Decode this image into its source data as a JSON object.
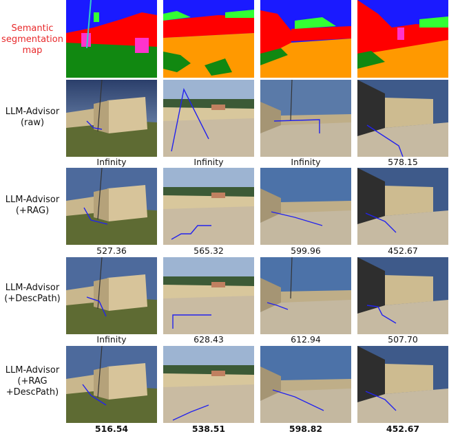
{
  "rows": [
    {
      "label": "Semantic\nsegmentation\nmap",
      "scores": [
        "",
        "",
        "",
        ""
      ],
      "bold": false
    },
    {
      "label": "LLM-Advisor\n(raw)",
      "scores": [
        "Infinity",
        "Infinity",
        "Infinity",
        "578.15"
      ],
      "bold": false
    },
    {
      "label": "LLM-Advisor\n(+RAG)",
      "scores": [
        "527.36",
        "565.32",
        "599.96",
        "452.67"
      ],
      "bold": false
    },
    {
      "label": "LLM-Advisor\n(+DescPath)",
      "scores": [
        "Infinity",
        "628.43",
        "612.94",
        "507.70"
      ],
      "bold": false
    },
    {
      "label": "LLM-Advisor\n(+RAG\n+DescPath)",
      "scores": [
        "516.54",
        "538.51",
        "598.82",
        "452.67"
      ],
      "bold": true
    }
  ],
  "colors": {
    "label_highlight": "#e8282a",
    "seg_sky": "#1a1aff",
    "seg_building": "#ff0000",
    "seg_vegetation": "#33ff33",
    "seg_ground": "#ff9900",
    "seg_grass": "#118811",
    "seg_object": "#ff33cc",
    "path": "#2222ee"
  }
}
